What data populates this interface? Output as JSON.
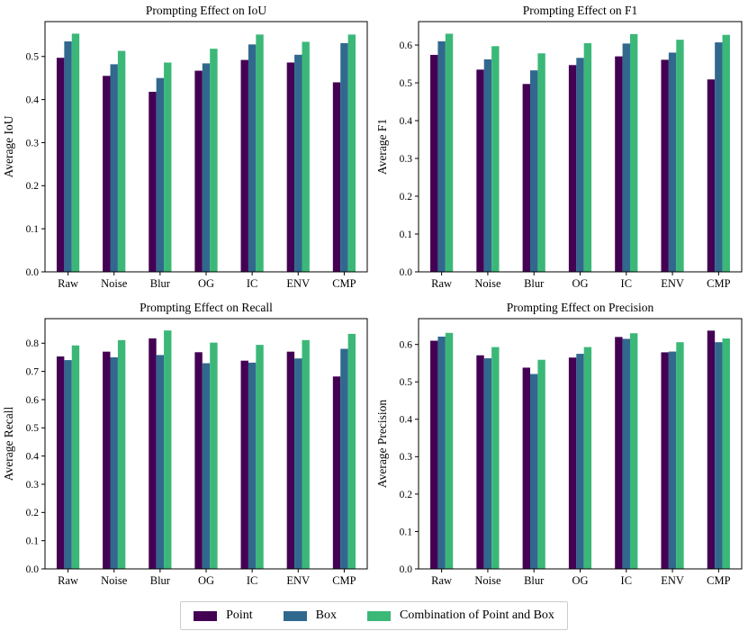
{
  "figure": {
    "background": "#ffffff",
    "axis_color": "#000000",
    "text_color": "#000000"
  },
  "legend": {
    "items": [
      {
        "label": "Point",
        "color": "#440154"
      },
      {
        "label": "Box",
        "color": "#31688e"
      },
      {
        "label": "Combination of Point and Box",
        "color": "#3bb878"
      }
    ]
  },
  "chart_data": [
    {
      "id": "iou",
      "type": "bar",
      "title": "Prompting Effect on IoU",
      "ylabel": "Average IoU",
      "xlabel": "",
      "grid": false,
      "legend_position": "bottom-center-shared",
      "categories": [
        "Raw",
        "Noise",
        "Blur",
        "OG",
        "IC",
        "ENV",
        "CMP"
      ],
      "series": [
        {
          "name": "Point",
          "color": "#440154",
          "values": [
            0.497,
            0.455,
            0.418,
            0.467,
            0.492,
            0.486,
            0.44
          ]
        },
        {
          "name": "Box",
          "color": "#31688e",
          "values": [
            0.535,
            0.482,
            0.45,
            0.484,
            0.528,
            0.504,
            0.531
          ]
        },
        {
          "name": "Combination of Point and Box",
          "color": "#3bb878",
          "values": [
            0.553,
            0.513,
            0.486,
            0.518,
            0.551,
            0.534,
            0.551
          ]
        }
      ],
      "yticks": [
        0.0,
        0.1,
        0.2,
        0.3,
        0.4,
        0.5
      ],
      "ylim": [
        0,
        0.581
      ]
    },
    {
      "id": "f1",
      "type": "bar",
      "title": "Prompting Effect on F1",
      "ylabel": "Average F1",
      "xlabel": "",
      "grid": false,
      "legend_position": "bottom-center-shared",
      "categories": [
        "Raw",
        "Noise",
        "Blur",
        "OG",
        "IC",
        "ENV",
        "CMP"
      ],
      "series": [
        {
          "name": "Point",
          "color": "#440154",
          "values": [
            0.574,
            0.535,
            0.497,
            0.547,
            0.57,
            0.561,
            0.509
          ]
        },
        {
          "name": "Box",
          "color": "#31688e",
          "values": [
            0.61,
            0.562,
            0.533,
            0.566,
            0.604,
            0.58,
            0.607
          ]
        },
        {
          "name": "Combination of Point and Box",
          "color": "#3bb878",
          "values": [
            0.63,
            0.597,
            0.578,
            0.605,
            0.629,
            0.614,
            0.627
          ]
        }
      ],
      "yticks": [
        0.0,
        0.1,
        0.2,
        0.3,
        0.4,
        0.5,
        0.6
      ],
      "ylim": [
        0,
        0.662
      ]
    },
    {
      "id": "recall",
      "type": "bar",
      "title": "Prompting Effect on Recall",
      "ylabel": "Average Recall",
      "xlabel": "",
      "grid": false,
      "legend_position": "bottom-center-shared",
      "categories": [
        "Raw",
        "Noise",
        "Blur",
        "OG",
        "IC",
        "ENV",
        "CMP"
      ],
      "series": [
        {
          "name": "Point",
          "color": "#440154",
          "values": [
            0.753,
            0.77,
            0.817,
            0.768,
            0.738,
            0.77,
            0.682
          ]
        },
        {
          "name": "Box",
          "color": "#31688e",
          "values": [
            0.74,
            0.75,
            0.758,
            0.729,
            0.731,
            0.746,
            0.78
          ]
        },
        {
          "name": "Combination of Point and Box",
          "color": "#3bb878",
          "values": [
            0.792,
            0.811,
            0.845,
            0.802,
            0.794,
            0.811,
            0.833
          ]
        }
      ],
      "yticks": [
        0.0,
        0.1,
        0.2,
        0.3,
        0.4,
        0.5,
        0.6,
        0.7,
        0.8
      ],
      "ylim": [
        0,
        0.887
      ]
    },
    {
      "id": "precision",
      "type": "bar",
      "title": "Prompting Effect on Precision",
      "ylabel": "Average Precision",
      "xlabel": "",
      "grid": false,
      "legend_position": "bottom-center-shared",
      "categories": [
        "Raw",
        "Noise",
        "Blur",
        "OG",
        "IC",
        "ENV",
        "CMP"
      ],
      "series": [
        {
          "name": "Point",
          "color": "#440154",
          "values": [
            0.61,
            0.571,
            0.538,
            0.565,
            0.62,
            0.579,
            0.637
          ]
        },
        {
          "name": "Box",
          "color": "#31688e",
          "values": [
            0.621,
            0.563,
            0.521,
            0.575,
            0.615,
            0.581,
            0.606
          ]
        },
        {
          "name": "Combination of Point and Box",
          "color": "#3bb878",
          "values": [
            0.631,
            0.593,
            0.559,
            0.593,
            0.63,
            0.606,
            0.616
          ]
        }
      ],
      "yticks": [
        0.0,
        0.1,
        0.2,
        0.3,
        0.4,
        0.5,
        0.6
      ],
      "ylim": [
        0,
        0.669
      ]
    }
  ]
}
